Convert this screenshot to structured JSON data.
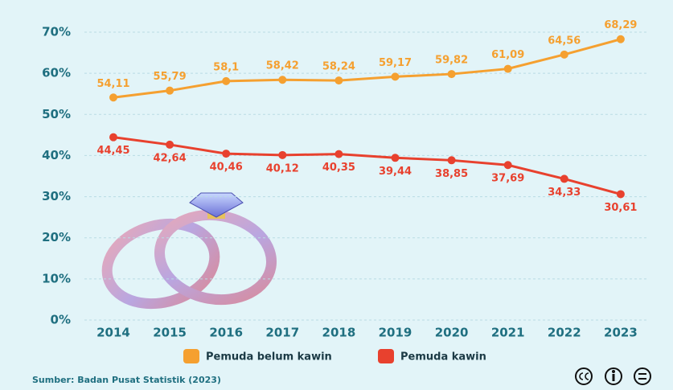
{
  "chart_data": {
    "type": "line",
    "categories": [
      "2014",
      "2015",
      "2016",
      "2017",
      "2018",
      "2019",
      "2020",
      "2021",
      "2022",
      "2023"
    ],
    "series": [
      {
        "name": "Pemuda belum kawin",
        "color": "#f5a030",
        "values": [
          54.11,
          55.79,
          58.1,
          58.42,
          58.24,
          59.17,
          59.82,
          61.09,
          64.56,
          68.29
        ],
        "value_labels": [
          "54,11",
          "55,79",
          "58,1",
          "58,42",
          "58,24",
          "59,17",
          "59,82",
          "61,09",
          "64,56",
          "68,29"
        ]
      },
      {
        "name": "Pemuda kawin",
        "color": "#e8412e",
        "values": [
          44.45,
          42.64,
          40.46,
          40.12,
          40.35,
          39.44,
          38.85,
          37.69,
          34.33,
          30.61
        ],
        "value_labels": [
          "44,45",
          "42,64",
          "40,46",
          "40,12",
          "40,35",
          "39,44",
          "38,85",
          "37,69",
          "34,33",
          "30,61"
        ]
      }
    ],
    "ylim": [
      0,
      70
    ],
    "yticks": [
      {
        "value": 0,
        "label": "0%"
      },
      {
        "value": 10,
        "label": "10%"
      },
      {
        "value": 20,
        "label": "20%"
      },
      {
        "value": 30,
        "label": "30%"
      },
      {
        "value": 40,
        "label": "40%"
      },
      {
        "value": 50,
        "label": "50%"
      },
      {
        "value": 60,
        "label": "60%"
      },
      {
        "value": 70,
        "label": "70%"
      }
    ],
    "grid": true,
    "legend": "bottom",
    "source": "Sumber: Badan Pusat Statistik (2023)"
  }
}
